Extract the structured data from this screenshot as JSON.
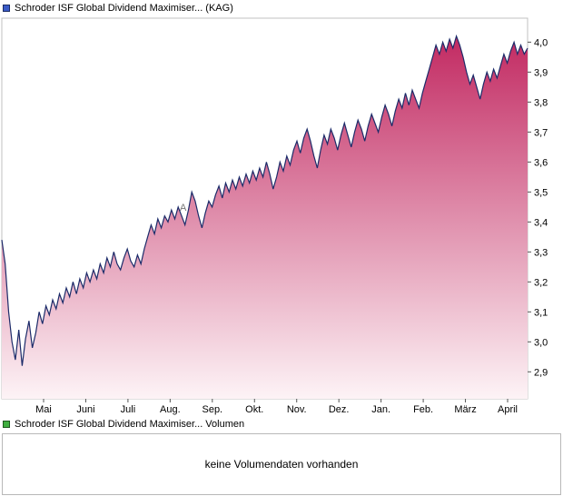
{
  "watermark": "A",
  "price_legend": {
    "label": "Schroder ISF Global Dividend Maximiser... (KAG)",
    "marker_color": "#3a5bc7"
  },
  "volume_legend": {
    "label": "Schroder ISF Global Dividend Maximiser... Volumen",
    "marker_color": "#3fae3f"
  },
  "volume_panel": {
    "message": "keine Volumendaten vorhanden"
  },
  "chart_data": {
    "type": "area",
    "series_name": "Schroder ISF Global Dividend Maximiser... (KAG)",
    "x_tick_labels": [
      "Mai",
      "Juni",
      "Juli",
      "Aug.",
      "Sep.",
      "Okt.",
      "Nov.",
      "Dez.",
      "Jan.",
      "Feb.",
      "März",
      "April"
    ],
    "y_ticks": [
      2.9,
      3.0,
      3.1,
      3.2,
      3.3,
      3.4,
      3.5,
      3.6,
      3.7,
      3.8,
      3.9,
      4.0
    ],
    "y_tick_labels": [
      "2,9",
      "3,0",
      "3,1",
      "3,2",
      "3,3",
      "3,4",
      "3,5",
      "3,6",
      "3,7",
      "3,8",
      "3,9",
      "4,0"
    ],
    "ylim": [
      2.81,
      4.08
    ],
    "grid": false,
    "legend_position": "top-left-outside",
    "line_color": "#1c2b69",
    "fill_top": "#c22a62",
    "fill_bottom": "#fdf3f6",
    "axis_color": "#c0c0c0",
    "values": [
      3.34,
      3.26,
      3.1,
      3.0,
      2.94,
      3.04,
      2.92,
      3.01,
      3.07,
      2.98,
      3.03,
      3.1,
      3.06,
      3.12,
      3.09,
      3.14,
      3.11,
      3.16,
      3.13,
      3.18,
      3.15,
      3.2,
      3.16,
      3.21,
      3.18,
      3.23,
      3.2,
      3.24,
      3.21,
      3.26,
      3.23,
      3.28,
      3.25,
      3.3,
      3.26,
      3.24,
      3.28,
      3.31,
      3.27,
      3.25,
      3.29,
      3.26,
      3.31,
      3.35,
      3.39,
      3.36,
      3.41,
      3.38,
      3.42,
      3.4,
      3.44,
      3.41,
      3.45,
      3.42,
      3.39,
      3.44,
      3.5,
      3.47,
      3.42,
      3.38,
      3.43,
      3.47,
      3.45,
      3.49,
      3.52,
      3.48,
      3.53,
      3.5,
      3.54,
      3.51,
      3.55,
      3.52,
      3.56,
      3.53,
      3.57,
      3.54,
      3.58,
      3.55,
      3.6,
      3.56,
      3.51,
      3.55,
      3.6,
      3.57,
      3.62,
      3.59,
      3.64,
      3.67,
      3.63,
      3.68,
      3.71,
      3.67,
      3.62,
      3.58,
      3.64,
      3.69,
      3.66,
      3.71,
      3.68,
      3.64,
      3.69,
      3.73,
      3.69,
      3.65,
      3.7,
      3.74,
      3.71,
      3.67,
      3.72,
      3.76,
      3.73,
      3.7,
      3.75,
      3.79,
      3.76,
      3.72,
      3.77,
      3.81,
      3.78,
      3.83,
      3.79,
      3.84,
      3.81,
      3.78,
      3.83,
      3.87,
      3.91,
      3.95,
      3.99,
      3.96,
      4.0,
      3.97,
      4.01,
      3.98,
      4.02,
      3.99,
      3.95,
      3.9,
      3.86,
      3.89,
      3.85,
      3.81,
      3.86,
      3.9,
      3.87,
      3.91,
      3.88,
      3.92,
      3.96,
      3.93,
      3.97,
      4.0,
      3.96,
      3.99,
      3.96,
      3.98
    ]
  }
}
